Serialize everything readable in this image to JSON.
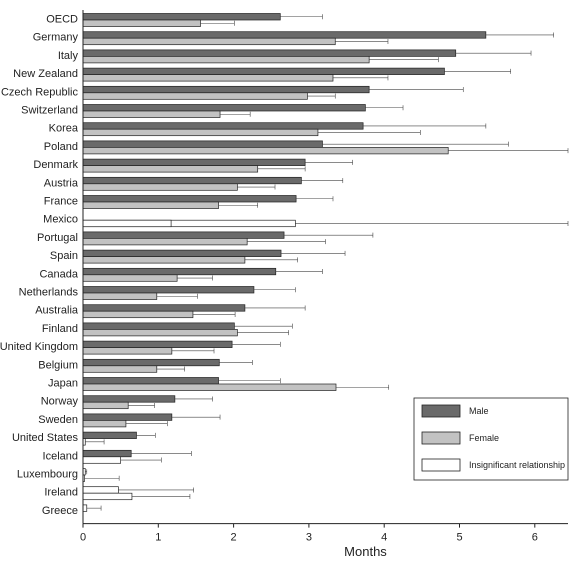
{
  "chart_data": {
    "type": "bar",
    "orientation": "horizontal",
    "xlabel": "Months",
    "ylabel": "",
    "xlim": [
      0,
      6.5
    ],
    "xticks": [
      0,
      1,
      2,
      3,
      4,
      5,
      6
    ],
    "grid": false,
    "legend_position": "bottom-right",
    "categories": [
      "OECD",
      "Germany",
      "Italy",
      "New Zealand",
      "Czech Republic",
      "Switzerland",
      "Korea",
      "Poland",
      "Denmark",
      "Austria",
      "France",
      "Mexico",
      "Portugal",
      "Spain",
      "Canada",
      "Netherlands",
      "Australia",
      "Finland",
      "United Kingdom",
      "Belgium",
      "Japan",
      "Norway",
      "Sweden",
      "United States",
      "Iceland",
      "Luxembourg",
      "Ireland",
      "Greece"
    ],
    "series": [
      {
        "name": "Male",
        "color": "#6a6a6a",
        "values": [
          2.62,
          5.35,
          4.95,
          4.8,
          3.8,
          3.75,
          3.72,
          3.18,
          2.95,
          2.9,
          2.83,
          null,
          2.67,
          2.63,
          2.56,
          2.27,
          2.15,
          2.01,
          1.98,
          1.81,
          1.8,
          1.22,
          1.18,
          0.71,
          0.64,
          null,
          null,
          null
        ],
        "err_high": [
          3.18,
          6.25,
          5.95,
          5.68,
          5.05,
          4.25,
          5.35,
          5.65,
          3.58,
          3.45,
          3.32,
          null,
          3.85,
          3.48,
          3.18,
          2.82,
          2.95,
          2.78,
          2.62,
          2.25,
          2.62,
          1.72,
          1.82,
          0.96,
          1.44,
          null,
          null,
          null
        ]
      },
      {
        "name": "Female",
        "color": "#c2c2c2",
        "values": [
          1.56,
          3.35,
          3.8,
          3.32,
          2.98,
          1.82,
          3.12,
          4.85,
          2.32,
          2.05,
          1.8,
          null,
          2.18,
          2.15,
          1.25,
          0.98,
          1.46,
          2.05,
          1.18,
          0.98,
          3.36,
          0.6,
          0.57,
          null,
          null,
          null,
          null,
          null
        ],
        "err_high": [
          2.01,
          4.05,
          4.72,
          4.05,
          3.35,
          2.22,
          4.48,
          6.8,
          2.95,
          2.55,
          2.32,
          null,
          3.22,
          2.85,
          1.72,
          1.52,
          2.02,
          2.73,
          1.74,
          1.35,
          4.06,
          0.95,
          1.12,
          null,
          null,
          null,
          null,
          null
        ]
      },
      {
        "name": "Insignificant relationship",
        "color": "#ffffff",
        "values_male": [
          null,
          null,
          null,
          null,
          null,
          null,
          null,
          null,
          null,
          null,
          null,
          null,
          null,
          null,
          null,
          null,
          null,
          null,
          null,
          null,
          null,
          null,
          null,
          null,
          null,
          0.03,
          0.47,
          0.05
        ],
        "values_female": [
          null,
          null,
          null,
          null,
          null,
          null,
          null,
          null,
          null,
          null,
          null,
          2.82,
          null,
          null,
          null,
          null,
          null,
          null,
          null,
          null,
          null,
          null,
          null,
          0.03,
          0.5,
          0.02,
          0.65,
          null
        ],
        "err_high_male": [
          null,
          null,
          null,
          null,
          null,
          null,
          null,
          null,
          null,
          null,
          null,
          null,
          null,
          null,
          null,
          null,
          null,
          null,
          null,
          null,
          null,
          null,
          null,
          null,
          null,
          0.05,
          1.47,
          0.24
        ],
        "err_high_female": [
          null,
          null,
          null,
          null,
          null,
          null,
          null,
          null,
          null,
          null,
          null,
          6.5,
          null,
          null,
          null,
          null,
          null,
          null,
          null,
          null,
          null,
          null,
          null,
          0.28,
          1.04,
          0.48,
          1.42,
          0.78
        ]
      }
    ],
    "mexico_male_insignificant": 1.17
  }
}
